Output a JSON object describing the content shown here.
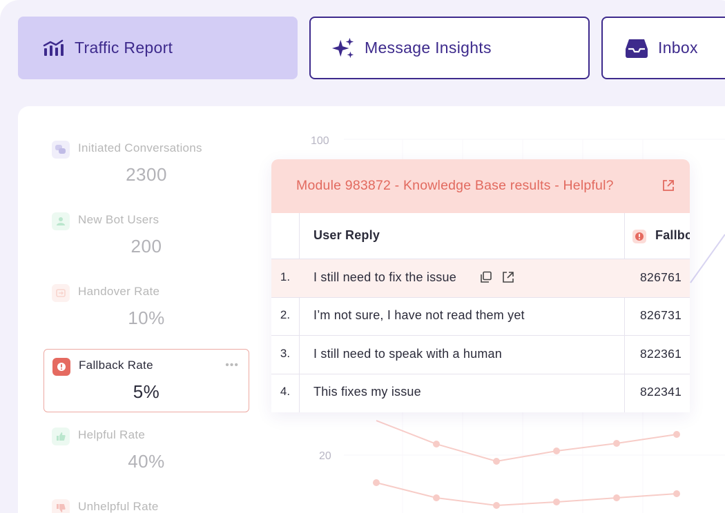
{
  "tabs": [
    {
      "label": "Traffic Report",
      "icon": "bar-chart-icon"
    },
    {
      "label": "Message Insights",
      "icon": "sparkle-icon"
    },
    {
      "label": "Inbox",
      "icon": "inbox-tray-icon"
    }
  ],
  "metrics": [
    {
      "label": "Initiated Conversations",
      "value": "2300",
      "icon": "chat-bubbles-icon",
      "color": "#8f84d6"
    },
    {
      "label": "New Bot Users",
      "value": "200",
      "icon": "user-icon",
      "color": "#5dc48a"
    },
    {
      "label": "Handover Rate",
      "value": "10%",
      "icon": "handover-icon",
      "color": "#ef9a8c"
    },
    {
      "label": "Fallback Rate",
      "value": "5%",
      "icon": "alert-icon",
      "color": "#e56a60"
    },
    {
      "label": "Helpful Rate",
      "value": "40%",
      "icon": "thumbs-up-icon",
      "color": "#5dc48a"
    },
    {
      "label": "Unhelpful Rate",
      "value": "",
      "icon": "thumbs-down-icon",
      "color": "#e56a60"
    }
  ],
  "chart": {
    "tick_top": "100",
    "tick_bottom": "20"
  },
  "popup": {
    "title": "Module 983872 - Knowledge Base results - Helpful?",
    "col_reply": "User Reply",
    "col_fallback": "Fallbc",
    "rows": [
      {
        "num": "1.",
        "text": "I still need to fix the issue",
        "id": "826761"
      },
      {
        "num": "2.",
        "text": "I’m not sure, I have not read them yet",
        "id": "826731"
      },
      {
        "num": "3.",
        "text": "I still need to speak with a human",
        "id": "822361"
      },
      {
        "num": "4.",
        "text": "This fixes my issue",
        "id": "822341"
      }
    ]
  },
  "colors": {
    "accent": "#3d2a8c",
    "active_tab": "#d3cdf5",
    "alert": "#e26a5f",
    "popup_header": "#fcdcd8"
  }
}
